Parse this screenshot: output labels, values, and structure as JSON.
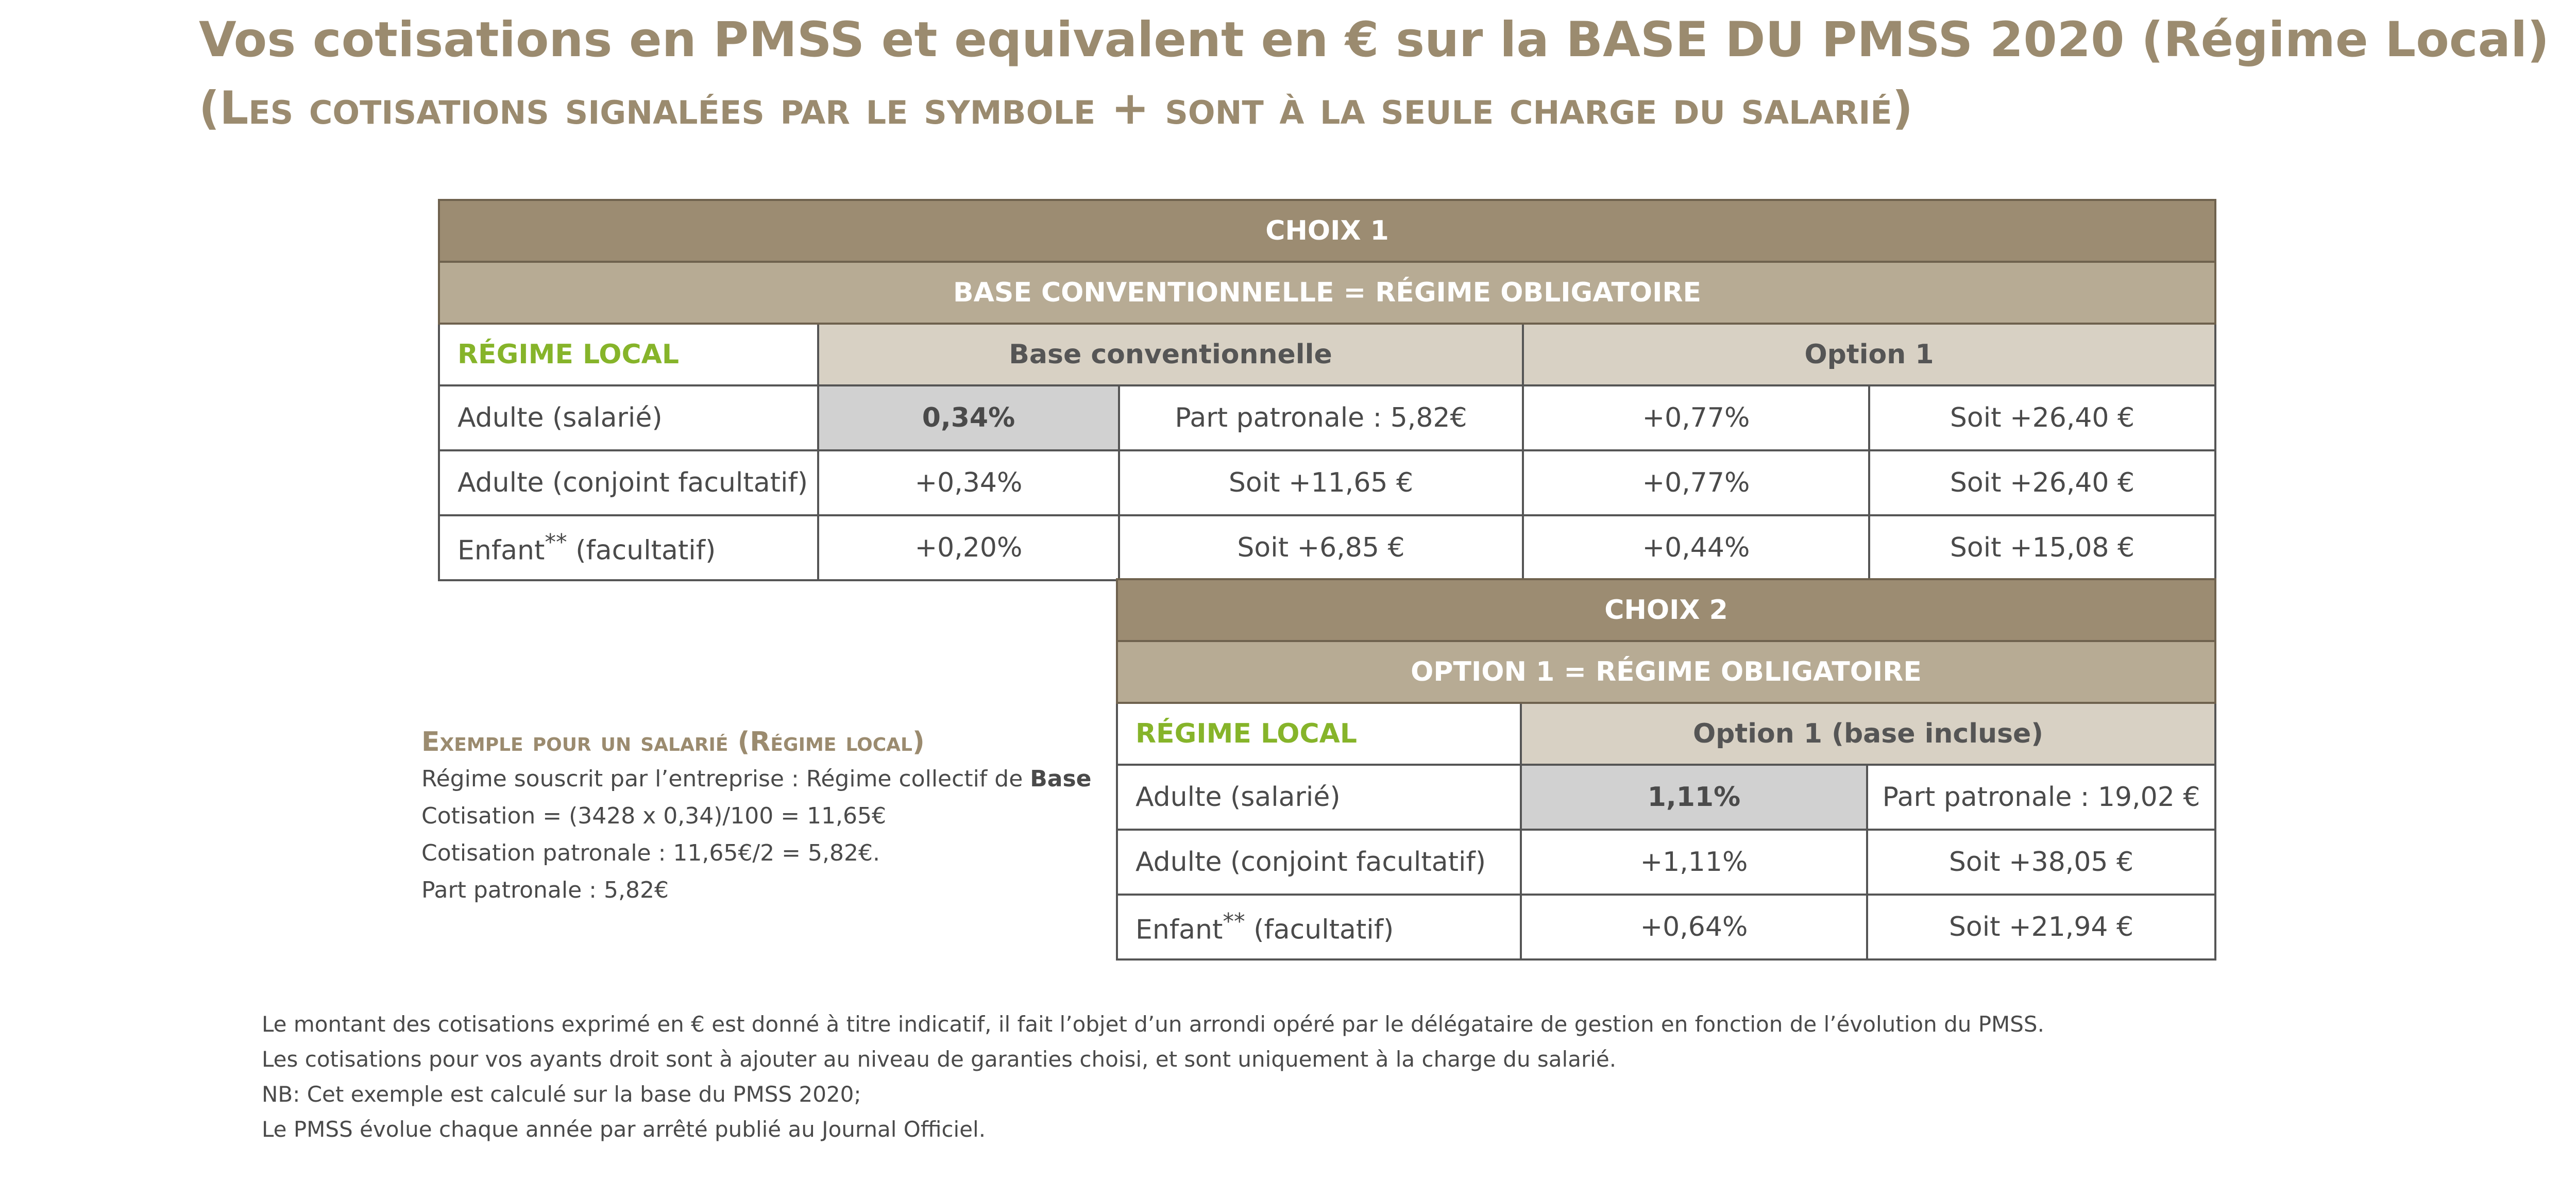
{
  "header": {
    "title": "Vos cotisations en PMSS et equivalent en € sur la BASE DU PMSS 2020 (Régime Local)",
    "subtitle_open": "(Les cotisations signalées par le symbole ",
    "subtitle_plus": "+",
    "subtitle_close": " sont à la seule charge du salarié)"
  },
  "choix1": {
    "title": "CHOIX 1",
    "subtitle": "BASE CONVENTIONNELLE = RÉGIME OBLIGATOIRE",
    "regime_label": "RÉGIME LOCAL",
    "col_base": "Base conventionnelle",
    "col_option": "Option 1",
    "rows": [
      {
        "label": "Adulte (salarié)",
        "base_rate": "0,34%",
        "base_amount": "Part patronale : 5,82€",
        "option_rate": "+0,77%",
        "option_amount": "Soit +26,40 €"
      },
      {
        "label": "Adulte (conjoint facultatif)",
        "base_rate": "+0,34%",
        "base_amount": "Soit +11,65 €",
        "option_rate": "+0,77%",
        "option_amount": "Soit +26,40 €"
      },
      {
        "label_main": "Enfant",
        "label_sup": "**",
        "label_rest": " (facultatif)",
        "base_rate": "+0,20%",
        "base_amount": "Soit +6,85 €",
        "option_rate": "+0,44%",
        "option_amount": "Soit +15,08 €"
      }
    ]
  },
  "choix2": {
    "title": "CHOIX 2",
    "subtitle": "OPTION 1 = RÉGIME OBLIGATOIRE",
    "regime_label": "RÉGIME LOCAL",
    "col_option": "Option 1 (base incluse)",
    "rows": [
      {
        "label": "Adulte (salarié)",
        "rate": "1,11%",
        "amount": "Part patronale : 19,02 €"
      },
      {
        "label": "Adulte (conjoint facultatif)",
        "rate": "+1,11%",
        "amount": "Soit +38,05 €"
      },
      {
        "label_main": "Enfant",
        "label_sup": "**",
        "label_rest": " (facultatif)",
        "rate": "+0,64%",
        "amount": "Soit +21,94 €"
      }
    ]
  },
  "example": {
    "title": "Exemple pour un salarié (Régime local)",
    "line1_text": "Régime souscrit par l’entreprise : Régime collectif de ",
    "line1_bold": "Base",
    "line2": "Cotisation = (3428 x 0,34)/100 = 11,65€",
    "line3": "Cotisation patronale : 11,65€/2 = 5,82€.",
    "line4": "Part patronale : 5,82€"
  },
  "footer": {
    "line1": "Le montant des cotisations exprimé en € est donné à titre indicatif, il fait l’objet d’un arrondi opéré par le délégataire de gestion en fonction de l’évolution du PMSS.",
    "line2": "Les cotisations pour vos ayants droit sont à ajouter au niveau de garanties choisi, et sont uniquement à la charge du salarié.",
    "line3": "NB: Cet exemple est calculé sur la base du PMSS 2020;",
    "line4": "Le PMSS évolue chaque année par arrêté publié au Journal Officiel."
  }
}
